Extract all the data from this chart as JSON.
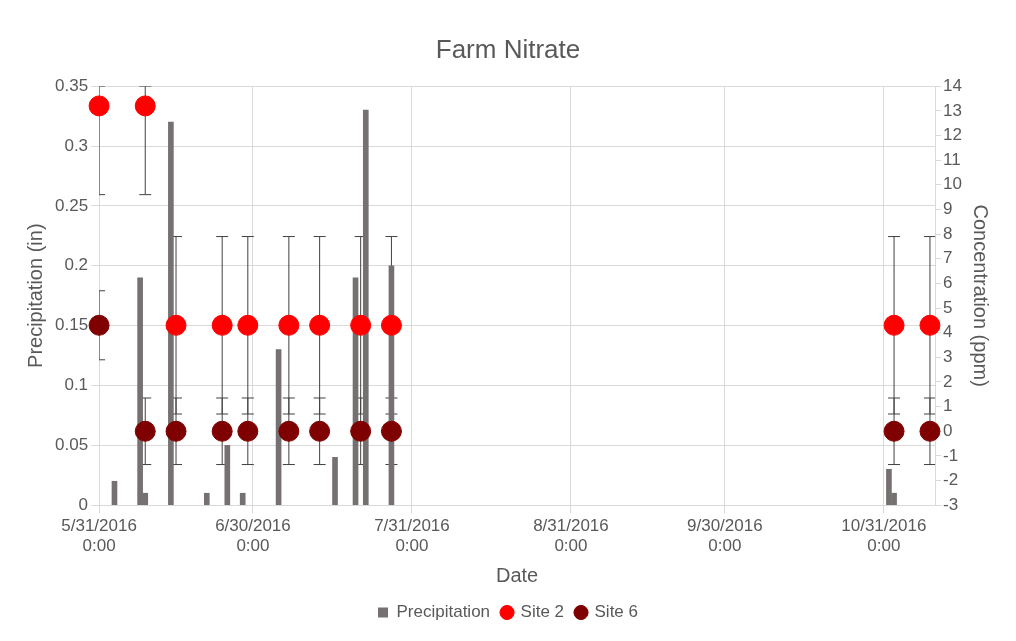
{
  "chart_data": {
    "type": "bar",
    "title": "Farm Nitrate",
    "xlabel": "Date",
    "ylabel": "Precipitation (in)",
    "y2label": "Concentration (ppm)",
    "xlim": [
      "2016-05-31",
      "2016-11-10"
    ],
    "xticks": [
      {
        "value": "2016-05-31",
        "label": "5/31/2016 0:00"
      },
      {
        "value": "2016-06-30",
        "label": "6/30/2016 0:00"
      },
      {
        "value": "2016-07-31",
        "label": "7/31/2016 0:00"
      },
      {
        "value": "2016-08-31",
        "label": "8/31/2016 0:00"
      },
      {
        "value": "2016-09-30",
        "label": "9/30/2016 0:00"
      },
      {
        "value": "2016-10-31",
        "label": "10/31/2016 0:00"
      }
    ],
    "ylim": [
      0,
      0.35
    ],
    "yticks": [
      0,
      0.05,
      0.1,
      0.15,
      0.2,
      0.25,
      0.3,
      0.35
    ],
    "y2lim": [
      -3,
      14
    ],
    "y2ticks": [
      -3,
      -2,
      -1,
      0,
      1,
      2,
      3,
      4,
      5,
      6,
      7,
      8,
      9,
      10,
      11,
      12,
      13,
      14
    ],
    "grid": true,
    "legend": "bottom",
    "marker": "circle",
    "series": [
      {
        "name": "Precipitation",
        "color": "#767171",
        "x": [
          "2016-06-03",
          "2016-06-08",
          "2016-06-09",
          "2016-06-14",
          "2016-06-21",
          "2016-06-25",
          "2016-06-28",
          "2016-07-05",
          "2016-07-16",
          "2016-07-20",
          "2016-07-22",
          "2016-07-27",
          "2016-11-01",
          "2016-11-02"
        ],
        "values": [
          0.02,
          0.19,
          0.01,
          0.32,
          0.01,
          0.05,
          0.01,
          0.13,
          0.04,
          0.19,
          0.33,
          0.2,
          0.03,
          0.01
        ]
      },
      {
        "name": "Site 2",
        "type": "scatter",
        "axis": "y2",
        "color": "#ff0000",
        "x": [
          "2016-05-31",
          "2016-06-09",
          "2016-06-15",
          "2016-06-24",
          "2016-06-29",
          "2016-07-07",
          "2016-07-13",
          "2016-07-21",
          "2016-07-27",
          "2016-11-02",
          "2016-11-09"
        ],
        "values": [
          13.2,
          13.2,
          4.3,
          4.3,
          4.3,
          4.3,
          4.3,
          4.3,
          4.3,
          4.3,
          4.3
        ],
        "errors": [
          [
            9.6,
            14
          ],
          [
            9.6,
            14
          ],
          3.6,
          3.6,
          3.6,
          3.6,
          3.6,
          3.6,
          3.6,
          3.6,
          3.6
        ]
      },
      {
        "name": "Site 6",
        "type": "scatter",
        "axis": "y2",
        "color": "#7f0000",
        "x": [
          "2016-05-31",
          "2016-06-09",
          "2016-06-15",
          "2016-06-24",
          "2016-06-29",
          "2016-07-07",
          "2016-07-13",
          "2016-07-21",
          "2016-07-27",
          "2016-11-02",
          "2016-11-09"
        ],
        "values": [
          4.3,
          0,
          0,
          0,
          0,
          0,
          0,
          0,
          0,
          0,
          0
        ],
        "errors": [
          1.4,
          1.35,
          1.35,
          1.35,
          1.35,
          1.35,
          1.35,
          1.35,
          1.35,
          1.35,
          1.35
        ]
      }
    ]
  }
}
